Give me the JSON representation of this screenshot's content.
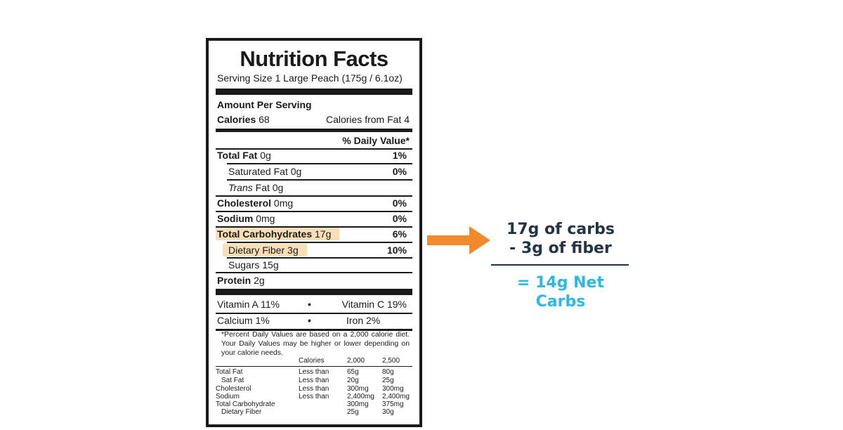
{
  "label": {
    "title": "Nutrition Facts",
    "serving": "Serving Size 1 Large Peach (175g / 6.1oz)",
    "amount_per_serving": "Amount Per Serving",
    "calories_label": "Calories",
    "calories_value": "68",
    "calories_from_fat": "Calories from Fat 4",
    "daily_value_header": "% Daily Value*",
    "nutrients": [
      {
        "name": "Total Fat",
        "amount": "0g",
        "dv": "1%"
      },
      {
        "name": "Saturated Fat",
        "amount": "0g",
        "dv": "0%"
      },
      {
        "name": "Trans",
        "amount": "Fat 0g",
        "dv": ""
      },
      {
        "name": "Cholesterol",
        "amount": "0mg",
        "dv": "0%"
      },
      {
        "name": "Sodium",
        "amount": "0mg",
        "dv": "0%"
      },
      {
        "name": "Total Carbohydrates",
        "amount": "17g",
        "dv": "6%"
      },
      {
        "name": "Dietary Fiber",
        "amount": "3g",
        "dv": "10%"
      },
      {
        "name": "Sugars",
        "amount": "15g",
        "dv": ""
      },
      {
        "name": "Protein",
        "amount": "2g",
        "dv": ""
      }
    ],
    "vitamins": [
      {
        "left": "Vitamin A 11%",
        "bullet": "•",
        "right": "Vitamin C 19%"
      },
      {
        "left": "Calcium 1%",
        "bullet": "•",
        "right": "Iron 2%"
      }
    ],
    "footnote": "*Percent Daily Values are based on a 2,000 calorie diet. Your Daily Values may be higher or lower depending on your calorie needs.",
    "table": {
      "header": [
        "Calories",
        "2,000",
        "2,500"
      ],
      "rows": [
        {
          "name": "Total Fat",
          "cond": "Less than",
          "a": "65g",
          "b": "80g"
        },
        {
          "name": "Sat Fat",
          "cond": "Less than",
          "a": "20g",
          "b": "25g"
        },
        {
          "name": "Cholesterol",
          "cond": "Less than",
          "a": "300mg",
          "b": "300mg"
        },
        {
          "name": "Sodium",
          "cond": "Less than",
          "a": "2,400mg",
          "b": "2,400mg"
        },
        {
          "name": "Total Carbohydrate",
          "cond": "",
          "a": "300mg",
          "b": "375mg"
        },
        {
          "name": "Dietary Fiber",
          "cond": "",
          "a": "25g",
          "b": "30g"
        }
      ]
    },
    "highlight_color": "#f8dfb8"
  },
  "equation": {
    "line1": "17g of carbs",
    "line2": "- 3g of fiber",
    "result": "= 14g Net Carbs",
    "arrow_color": "#f08a2c",
    "text_color": "#243447",
    "result_color": "#2bb8e6"
  }
}
